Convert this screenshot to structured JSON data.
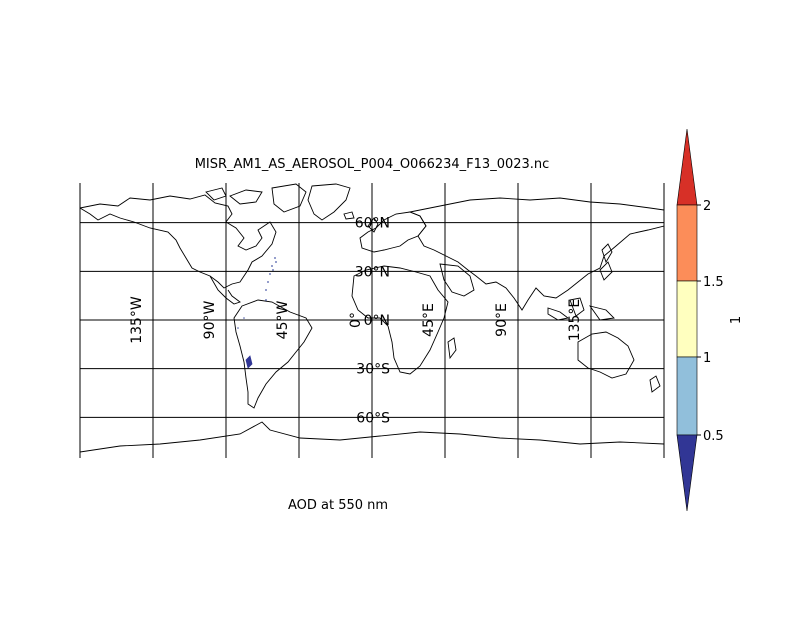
{
  "map": {
    "title": "MISR_AM1_AS_AEROSOL_P004_O066234_F13_0023.nc",
    "caption": "AOD at 550 nm",
    "projection": "equirectangular",
    "extent": {
      "lon": [
        -180,
        180
      ],
      "lat": [
        -90,
        90
      ]
    },
    "grid": {
      "meridians": [
        -135,
        -90,
        -45,
        0,
        45,
        90,
        135
      ],
      "parallels": [
        60,
        30,
        0,
        -30,
        -60
      ]
    },
    "lon_labels": [
      "135°W",
      "90°W",
      "45°W",
      "0°",
      "45°E",
      "90°E",
      "135°E"
    ],
    "lat_labels": [
      "60°N",
      "30°N",
      "0°N",
      "30°S",
      "60°S"
    ]
  },
  "colorbar": {
    "unit_label": "1",
    "tick_labels": [
      "0.5",
      "1",
      "1.5",
      "2"
    ],
    "bins": [
      {
        "from": null,
        "to": 0.5,
        "color": "#313695"
      },
      {
        "from": 0.5,
        "to": 1.0,
        "color": "#91bfdb"
      },
      {
        "from": 1.0,
        "to": 1.5,
        "color": "#ffffbf"
      },
      {
        "from": 1.5,
        "to": 2.0,
        "color": "#fc8d59"
      },
      {
        "from": 2.0,
        "to": null,
        "color": "#d73027"
      }
    ]
  },
  "observations": [
    {
      "region": "southern South America",
      "approx_lon": -76,
      "approx_lat": -27,
      "aod_bin": "<0.5"
    },
    {
      "region": "North Atlantic swath",
      "approx_lon": -62,
      "approx_lat": 30,
      "aod_bin": "<0.5"
    }
  ]
}
